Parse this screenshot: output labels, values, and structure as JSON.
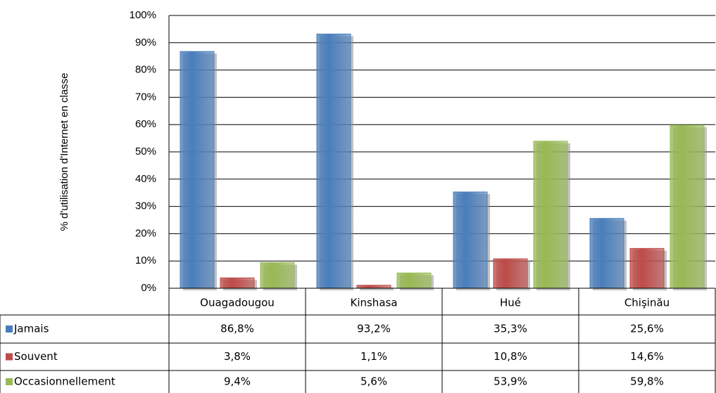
{
  "chart_data": {
    "type": "bar",
    "y_label": "% d'utilisation  d'Internet en classe",
    "categories": [
      "Ouagadougou",
      "Kinshasa",
      "Hué",
      "Chişinău"
    ],
    "series": [
      {
        "name": "Jamais",
        "color": "#4a7ebb",
        "values": [
          86.8,
          93.2,
          35.3,
          25.6
        ],
        "value_labels": [
          "86,8%",
          "93,2%",
          "35,3%",
          "25,6%"
        ]
      },
      {
        "name": "Souvent",
        "color": "#be4b48",
        "values": [
          3.8,
          1.1,
          10.8,
          14.6
        ],
        "value_labels": [
          "3,8%",
          "1,1%",
          "10,8%",
          "14,6%"
        ]
      },
      {
        "name": "Occasionnellement",
        "color": "#98b954",
        "values": [
          9.4,
          5.6,
          53.9,
          59.8
        ],
        "value_labels": [
          "9,4%",
          "5,6%",
          "53,9%",
          "59,8%"
        ]
      }
    ],
    "ylim": [
      0,
      100
    ],
    "yticks": [
      {
        "value": 0,
        "label": "0%"
      },
      {
        "value": 10,
        "label": "10%"
      },
      {
        "value": 20,
        "label": "20%"
      },
      {
        "value": 30,
        "label": "30%"
      },
      {
        "value": 40,
        "label": "40%"
      },
      {
        "value": 50,
        "label": "50%"
      },
      {
        "value": 60,
        "label": "60%"
      },
      {
        "value": 70,
        "label": "70%"
      },
      {
        "value": 80,
        "label": "80%"
      },
      {
        "value": 90,
        "label": "90%"
      },
      {
        "value": 100,
        "label": "100%"
      }
    ],
    "grid": true
  }
}
